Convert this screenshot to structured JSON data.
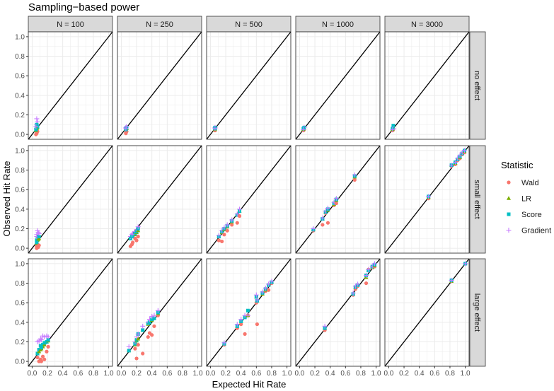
{
  "chart_data": {
    "type": "scatter",
    "title": "Sampling−based power",
    "xlabel": "Expected Hit Rate",
    "ylabel": "Observed Hit Rate",
    "xlim": [
      0,
      1
    ],
    "ylim": [
      0,
      1
    ],
    "ticks": [
      "0.0",
      "0.2",
      "0.4",
      "0.6",
      "0.8",
      "1.0"
    ],
    "tick_values": [
      0,
      0.2,
      0.4,
      0.6,
      0.8,
      1.0
    ],
    "grid": true,
    "reference_line": "y = x",
    "columns": [
      "N = 100",
      "N = 250",
      "N = 500",
      "N = 1000",
      "N = 3000"
    ],
    "rows": [
      "no effect",
      "small effect",
      "large effect"
    ],
    "legend": {
      "title": "Statistic",
      "placement": "right",
      "entries": [
        {
          "name": "Wald",
          "color": "#F8766D",
          "shape": "circle"
        },
        {
          "name": "LR",
          "color": "#7CAE00",
          "shape": "triangle"
        },
        {
          "name": "Score",
          "color": "#00BFC4",
          "shape": "square"
        },
        {
          "name": "Gradient",
          "color": "#C77CFF",
          "shape": "plus"
        }
      ]
    },
    "point_format": "[expected, Wald, LR, Score, Gradient]",
    "panels": [
      [
        [
          [
            0.06,
            0.01,
            0.05,
            0.06,
            0.1
          ],
          [
            0.07,
            0.03,
            0.07,
            0.08,
            0.13
          ],
          [
            0.06,
            0.02,
            0.06,
            0.1,
            0.16
          ],
          [
            0.05,
            0.0,
            0.04,
            0.05,
            0.08
          ]
        ],
        [
          [
            0.06,
            0.02,
            0.05,
            0.06,
            0.07
          ],
          [
            0.07,
            0.03,
            0.06,
            0.07,
            0.08
          ],
          [
            0.06,
            0.01,
            0.05,
            0.05,
            0.06
          ]
        ],
        [
          [
            0.06,
            0.05,
            0.06,
            0.07,
            0.07
          ],
          [
            0.06,
            0.04,
            0.05,
            0.06,
            0.06
          ]
        ],
        [
          [
            0.06,
            0.05,
            0.06,
            0.07,
            0.07
          ],
          [
            0.05,
            0.04,
            0.05,
            0.06,
            0.05
          ]
        ],
        [
          [
            0.06,
            0.05,
            0.07,
            0.09,
            0.06
          ],
          [
            0.05,
            0.04,
            0.05,
            0.06,
            0.05
          ]
        ]
      ],
      [
        [
          [
            0.06,
            0.02,
            0.06,
            0.08,
            0.14
          ],
          [
            0.07,
            0.04,
            0.08,
            0.1,
            0.18
          ],
          [
            0.08,
            0.01,
            0.09,
            0.12,
            0.16
          ],
          [
            0.06,
            0.0,
            0.05,
            0.06,
            0.12
          ],
          [
            0.09,
            0.03,
            0.1,
            0.12,
            0.15
          ]
        ],
        [
          [
            0.12,
            0.02,
            0.1,
            0.1,
            0.12
          ],
          [
            0.15,
            0.06,
            0.12,
            0.13,
            0.15
          ],
          [
            0.18,
            0.1,
            0.14,
            0.15,
            0.17
          ],
          [
            0.2,
            0.08,
            0.16,
            0.17,
            0.19
          ],
          [
            0.22,
            0.12,
            0.18,
            0.2,
            0.22
          ],
          [
            0.14,
            0.04,
            0.12,
            0.12,
            0.14
          ]
        ],
        [
          [
            0.11,
            0.08,
            0.12,
            0.12,
            0.13
          ],
          [
            0.15,
            0.07,
            0.16,
            0.17,
            0.18
          ],
          [
            0.18,
            0.14,
            0.19,
            0.2,
            0.21
          ],
          [
            0.22,
            0.18,
            0.22,
            0.23,
            0.24
          ],
          [
            0.28,
            0.24,
            0.27,
            0.28,
            0.29
          ],
          [
            0.35,
            0.26,
            0.34,
            0.34,
            0.35
          ],
          [
            0.38,
            0.33,
            0.38,
            0.38,
            0.4
          ]
        ],
        [
          [
            0.18,
            0.18,
            0.19,
            0.19,
            0.2
          ],
          [
            0.3,
            0.24,
            0.3,
            0.3,
            0.31
          ],
          [
            0.34,
            0.36,
            0.37,
            0.37,
            0.38
          ],
          [
            0.37,
            0.26,
            0.39,
            0.4,
            0.41
          ],
          [
            0.45,
            0.44,
            0.45,
            0.46,
            0.47
          ],
          [
            0.48,
            0.46,
            0.49,
            0.5,
            0.51
          ],
          [
            0.72,
            0.7,
            0.73,
            0.74,
            0.75
          ]
        ],
        [
          [
            0.52,
            0.51,
            0.52,
            0.53,
            0.53
          ],
          [
            0.82,
            0.84,
            0.85,
            0.85,
            0.85
          ],
          [
            0.87,
            0.86,
            0.87,
            0.88,
            0.88
          ],
          [
            0.9,
            0.9,
            0.91,
            0.91,
            0.92
          ],
          [
            0.93,
            0.92,
            0.93,
            0.94,
            0.95
          ],
          [
            0.96,
            0.96,
            0.97,
            0.97,
            0.98
          ],
          [
            0.99,
            0.98,
            0.99,
            1.0,
            1.0
          ]
        ]
      ],
      [
        [
          [
            0.07,
            0.04,
            0.08,
            0.08,
            0.2
          ],
          [
            0.09,
            0.0,
            0.1,
            0.12,
            0.21
          ],
          [
            0.11,
            0.02,
            0.12,
            0.16,
            0.23
          ],
          [
            0.14,
            0.05,
            0.15,
            0.17,
            0.26
          ],
          [
            0.16,
            0.02,
            0.17,
            0.19,
            0.25
          ],
          [
            0.19,
            0.1,
            0.2,
            0.2,
            0.26
          ],
          [
            0.21,
            0.15,
            0.21,
            0.22,
            0.25
          ],
          [
            0.12,
            0.0,
            0.13,
            0.14,
            0.22
          ]
        ],
        [
          [
            0.1,
            0.11,
            0.11,
            0.11,
            0.15
          ],
          [
            0.18,
            0.13,
            0.17,
            0.18,
            0.2
          ],
          [
            0.2,
            0.03,
            0.21,
            0.22,
            0.25
          ],
          [
            0.22,
            0.17,
            0.23,
            0.28,
            0.28
          ],
          [
            0.28,
            0.08,
            0.32,
            0.32,
            0.36
          ],
          [
            0.35,
            0.25,
            0.38,
            0.39,
            0.4
          ],
          [
            0.37,
            0.29,
            0.4,
            0.4,
            0.43
          ],
          [
            0.4,
            0.27,
            0.42,
            0.43,
            0.46
          ],
          [
            0.43,
            0.36,
            0.44,
            0.44,
            0.47
          ],
          [
            0.48,
            0.47,
            0.49,
            0.5,
            0.52
          ]
        ],
        [
          [
            0.18,
            0.17,
            0.18,
            0.18,
            0.19
          ],
          [
            0.35,
            0.34,
            0.36,
            0.36,
            0.38
          ],
          [
            0.4,
            0.38,
            0.41,
            0.41,
            0.43
          ],
          [
            0.45,
            0.28,
            0.46,
            0.45,
            0.47
          ],
          [
            0.49,
            0.47,
            0.47,
            0.52,
            0.47
          ],
          [
            0.6,
            0.6,
            0.66,
            0.66,
            0.68
          ],
          [
            0.61,
            0.38,
            0.62,
            0.62,
            0.63
          ],
          [
            0.68,
            0.69,
            0.69,
            0.7,
            0.71
          ],
          [
            0.72,
            0.72,
            0.73,
            0.74,
            0.75
          ],
          [
            0.76,
            0.73,
            0.78,
            0.78,
            0.79
          ],
          [
            0.8,
            0.8,
            0.81,
            0.81,
            0.82
          ]
        ],
        [
          [
            0.33,
            0.32,
            0.34,
            0.34,
            0.36
          ],
          [
            0.7,
            0.68,
            0.69,
            0.69,
            0.7
          ],
          [
            0.73,
            0.74,
            0.76,
            0.76,
            0.77
          ],
          [
            0.76,
            0.77,
            0.78,
            0.78,
            0.79
          ],
          [
            0.87,
            0.8,
            0.86,
            0.88,
            0.88
          ],
          [
            0.9,
            0.94,
            0.93,
            0.93,
            0.94
          ],
          [
            0.95,
            0.96,
            0.96,
            0.97,
            0.97
          ],
          [
            0.98,
            0.97,
            0.98,
            0.99,
            1.0
          ]
        ],
        [
          [
            0.82,
            0.82,
            0.82,
            0.83,
            0.83
          ],
          [
            1.0,
            1.0,
            1.0,
            1.0,
            1.0
          ]
        ]
      ]
    ]
  }
}
